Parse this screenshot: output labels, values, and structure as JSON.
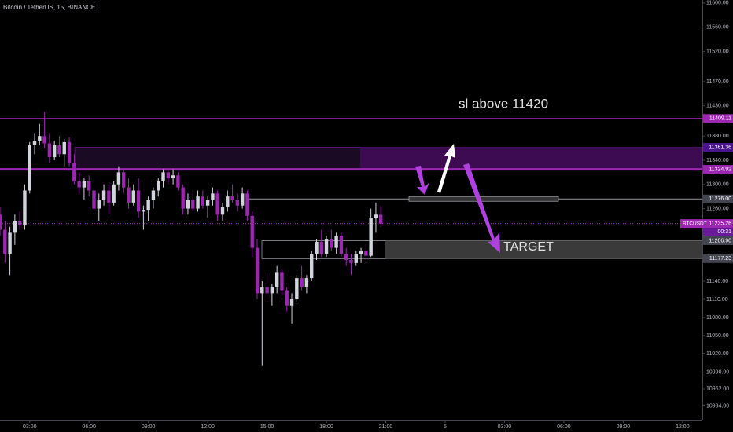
{
  "chart_data": {
    "type": "candlestick",
    "title": "Bitcoin / TetherUS, 15, BINANCE",
    "up_color": "#d1d4dc",
    "down_color": "#9c27b0",
    "xlim": [
      0,
      142
    ],
    "xticks": [
      {
        "value": 6,
        "label": "03:00"
      },
      {
        "value": 18,
        "label": "06:00"
      },
      {
        "value": 30,
        "label": "09:00"
      },
      {
        "value": 42,
        "label": "12:00"
      },
      {
        "value": 54,
        "label": "15:00"
      },
      {
        "value": 66,
        "label": "18:00"
      },
      {
        "value": 78,
        "label": "21:00"
      },
      {
        "value": 90,
        "label": "5"
      },
      {
        "value": 102,
        "label": "03:00"
      },
      {
        "value": 114,
        "label": "06:00"
      },
      {
        "value": 126,
        "label": "09:00"
      },
      {
        "value": 138,
        "label": "12:00"
      }
    ],
    "ylim": [
      10910,
      11605
    ],
    "yticks": [
      {
        "value": 11600,
        "label": "11600.00"
      },
      {
        "value": 11560,
        "label": "11560.00"
      },
      {
        "value": 11520,
        "label": "11520.00"
      },
      {
        "value": 11470,
        "label": "11470.00"
      },
      {
        "value": 11430,
        "label": "11430.00"
      },
      {
        "value": 11380,
        "label": "11380.00"
      },
      {
        "value": 11340,
        "label": "11340.00"
      },
      {
        "value": 11300,
        "label": "11300.00"
      },
      {
        "value": 11260,
        "label": "11260.00"
      },
      {
        "value": 11140,
        "label": "11140.00"
      },
      {
        "value": 11110,
        "label": "11110.00"
      },
      {
        "value": 11080,
        "label": "11080.00"
      },
      {
        "value": 11050,
        "label": "11050.00"
      },
      {
        "value": 11020,
        "label": "11020.00"
      },
      {
        "value": 10990,
        "label": "10990.00"
      },
      {
        "value": 10962,
        "label": "10962.00"
      },
      {
        "value": 10934,
        "label": "10934.00"
      }
    ],
    "open": [
      11250,
      11225,
      11185,
      11220,
      11240,
      11232,
      11290,
      11365,
      11372,
      11380,
      11368,
      11345,
      11365,
      11350,
      11370,
      11335,
      11305,
      11295,
      11305,
      11290,
      11260,
      11275,
      11290,
      11270,
      11300,
      11320,
      11295,
      11270,
      11290,
      11255,
      11258,
      11275,
      11290,
      11305,
      11320,
      11310,
      11315,
      11295,
      11260,
      11275,
      11260,
      11280,
      11265,
      11275,
      11285,
      11250,
      11262,
      11280,
      11275,
      11265,
      11285,
      11248,
      11195,
      11120,
      11130,
      11120,
      11130,
      11155,
      11125,
      11100,
      11110,
      11145,
      11130,
      11145,
      11185,
      11205,
      11185,
      11210,
      11195,
      11215,
      11185,
      11175,
      11170,
      11185,
      11190,
      11182,
      11245,
      11250
    ],
    "high": [
      11262,
      11240,
      11230,
      11250,
      11255,
      11300,
      11370,
      11385,
      11400,
      11420,
      11385,
      11372,
      11380,
      11375,
      11378,
      11350,
      11320,
      11310,
      11315,
      11300,
      11285,
      11300,
      11300,
      11305,
      11330,
      11325,
      11310,
      11300,
      11310,
      11265,
      11280,
      11295,
      11310,
      11325,
      11325,
      11325,
      11320,
      11300,
      11285,
      11285,
      11290,
      11290,
      11280,
      11295,
      11290,
      11270,
      11290,
      11300,
      11285,
      11295,
      11290,
      11255,
      11210,
      11140,
      11150,
      11135,
      11165,
      11160,
      11130,
      11120,
      11150,
      11165,
      11150,
      11190,
      11210,
      11225,
      11215,
      11225,
      11220,
      11220,
      11195,
      11185,
      11190,
      11195,
      11200,
      11260,
      11270,
      11265
    ],
    "low": [
      11215,
      11170,
      11150,
      11200,
      11225,
      11225,
      11285,
      11350,
      11365,
      11360,
      11335,
      11340,
      11345,
      11330,
      11330,
      11300,
      11285,
      11275,
      11280,
      11255,
      11240,
      11265,
      11250,
      11265,
      11290,
      11285,
      11260,
      11265,
      11245,
      11225,
      11240,
      11260,
      11280,
      11295,
      11300,
      11300,
      11290,
      11250,
      11250,
      11255,
      11255,
      11260,
      11245,
      11265,
      11240,
      11240,
      11255,
      11270,
      11255,
      11260,
      11240,
      11180,
      11110,
      11000,
      11110,
      11100,
      11120,
      11115,
      11090,
      11070,
      11105,
      11125,
      11120,
      11140,
      11175,
      11180,
      11180,
      11190,
      11185,
      11180,
      11165,
      11150,
      11165,
      11170,
      11175,
      11180,
      11220,
      11230
    ],
    "close": [
      11225,
      11185,
      11220,
      11240,
      11232,
      11290,
      11365,
      11372,
      11380,
      11368,
      11345,
      11365,
      11350,
      11370,
      11335,
      11305,
      11295,
      11305,
      11290,
      11260,
      11275,
      11290,
      11270,
      11300,
      11320,
      11295,
      11270,
      11290,
      11255,
      11258,
      11275,
      11290,
      11305,
      11320,
      11310,
      11315,
      11295,
      11260,
      11275,
      11260,
      11280,
      11265,
      11275,
      11285,
      11250,
      11262,
      11280,
      11275,
      11265,
      11285,
      11248,
      11195,
      11120,
      11130,
      11120,
      11130,
      11155,
      11125,
      11100,
      11110,
      11145,
      11130,
      11145,
      11185,
      11205,
      11185,
      11210,
      11195,
      11215,
      11185,
      11175,
      11170,
      11185,
      11190,
      11182,
      11245,
      11250,
      11235
    ],
    "levels": [
      {
        "value": 11409.11,
        "label": "11409.11",
        "color": "#9c27b0"
      },
      {
        "value": 11361.36,
        "label": "11361.36",
        "color": "#4a148c"
      },
      {
        "value": 11324.92,
        "label": "11324.92",
        "color": "#9c27b0"
      },
      {
        "value": 11276.0,
        "label": "11276.00",
        "color": "#434651"
      },
      {
        "value": 11235.26,
        "label": "11235.26",
        "color": "#9c27b0"
      },
      {
        "value": 11206.9,
        "label": "11206.90",
        "color": "#434651"
      },
      {
        "value": 11177.23,
        "label": "11177.23",
        "color": "#434651"
      }
    ],
    "symbol": "BTCUSDT",
    "timer": "00:31",
    "annotations": [
      "sl above 11420",
      "TARGET"
    ]
  }
}
